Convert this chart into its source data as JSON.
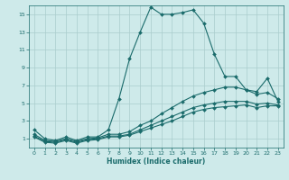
{
  "xlabel": "Humidex (Indice chaleur)",
  "background_color": "#ceeaea",
  "grid_color": "#aacccc",
  "line_color": "#1a6b6b",
  "xlim": [
    -0.5,
    23.5
  ],
  "ylim": [
    0,
    16
  ],
  "xticks": [
    0,
    1,
    2,
    3,
    4,
    5,
    6,
    7,
    8,
    9,
    10,
    11,
    12,
    13,
    14,
    15,
    16,
    17,
    18,
    19,
    20,
    21,
    22,
    23
  ],
  "yticks": [
    1,
    3,
    5,
    7,
    9,
    11,
    13,
    15
  ],
  "series": [
    {
      "x": [
        0,
        1,
        2,
        3,
        4,
        5,
        6,
        7,
        8,
        9,
        10,
        11,
        12,
        13,
        14,
        15,
        16,
        17,
        18,
        19,
        20,
        21,
        22,
        23
      ],
      "y": [
        2.0,
        1.0,
        0.8,
        1.2,
        0.8,
        1.2,
        1.2,
        2.0,
        5.5,
        10.0,
        13.0,
        15.8,
        15.0,
        15.0,
        15.2,
        15.5,
        14.0,
        10.5,
        8.0,
        8.0,
        6.5,
        6.3,
        7.8,
        5.2
      ]
    },
    {
      "x": [
        0,
        1,
        2,
        3,
        4,
        5,
        6,
        7,
        8,
        9,
        10,
        11,
        12,
        13,
        14,
        15,
        16,
        17,
        18,
        19,
        20,
        21,
        22,
        23
      ],
      "y": [
        1.5,
        0.8,
        0.7,
        1.0,
        0.7,
        1.0,
        1.1,
        1.5,
        1.5,
        1.8,
        2.5,
        3.0,
        3.8,
        4.5,
        5.2,
        5.8,
        6.2,
        6.5,
        6.8,
        6.8,
        6.5,
        6.0,
        6.2,
        5.5
      ]
    },
    {
      "x": [
        0,
        1,
        2,
        3,
        4,
        5,
        6,
        7,
        8,
        9,
        10,
        11,
        12,
        13,
        14,
        15,
        16,
        17,
        18,
        19,
        20,
        21,
        22,
        23
      ],
      "y": [
        1.3,
        0.7,
        0.6,
        0.9,
        0.6,
        0.9,
        1.0,
        1.3,
        1.3,
        1.5,
        2.0,
        2.5,
        3.0,
        3.5,
        4.0,
        4.5,
        4.8,
        5.0,
        5.2,
        5.2,
        5.2,
        4.9,
        5.0,
        4.8
      ]
    },
    {
      "x": [
        0,
        1,
        2,
        3,
        4,
        5,
        6,
        7,
        8,
        9,
        10,
        11,
        12,
        13,
        14,
        15,
        16,
        17,
        18,
        19,
        20,
        21,
        22,
        23
      ],
      "y": [
        1.2,
        0.6,
        0.5,
        0.8,
        0.5,
        0.8,
        0.9,
        1.2,
        1.2,
        1.4,
        1.8,
        2.2,
        2.6,
        3.0,
        3.5,
        4.0,
        4.3,
        4.5,
        4.6,
        4.7,
        4.8,
        4.5,
        4.7,
        4.7
      ]
    }
  ]
}
